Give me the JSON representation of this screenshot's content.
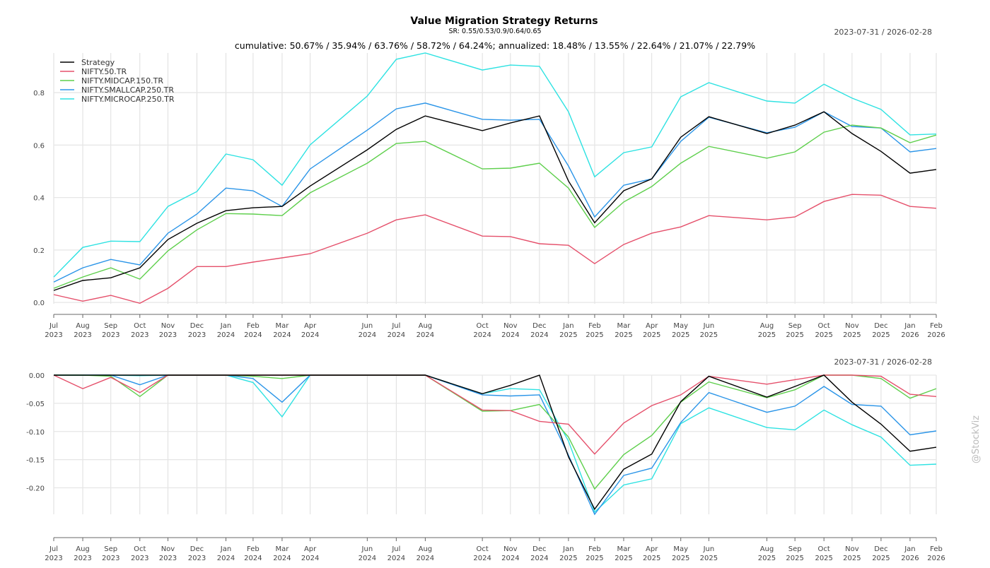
{
  "title": "Value Migration Strategy Returns",
  "subtitle": "SR: 0.55/0.53/0.9/0.64/0.65",
  "summary": "cumulative: 50.67% / 35.94% / 63.76% / 58.72% / 64.24%; annualized: 18.48% / 13.55% / 22.64% / 21.07% / 22.79%",
  "date_range": "2023-07-31 / 2026-02-28",
  "watermark": "@StockViz",
  "chart_data": [
    {
      "type": "line",
      "panel": "cumulative returns",
      "x": [
        "2023-07-31",
        "2023-08-31",
        "2023-09-30",
        "2023-10-31",
        "2023-11-30",
        "2023-12-31",
        "2024-01-31",
        "2024-02-29",
        "2024-03-31",
        "2024-04-30",
        "2024-06-30",
        "2024-07-31",
        "2024-08-31",
        "2024-10-31",
        "2024-11-30",
        "2024-12-31",
        "2025-01-31",
        "2025-02-28",
        "2025-03-31",
        "2025-04-30",
        "2025-05-31",
        "2025-06-30",
        "2025-08-31",
        "2025-09-30",
        "2025-10-31",
        "2025-11-30",
        "2025-12-31",
        "2026-01-31",
        "2026-02-28"
      ],
      "tick_labels": [
        "Jul 2023",
        "Aug 2023",
        "Sep 2023",
        "Oct 2023",
        "Nov 2023",
        "Dec 2023",
        "Jan 2024",
        "Feb 2024",
        "Mar 2024",
        "Apr 2024",
        "Jun 2024",
        "Jul 2024",
        "Aug 2024",
        "Oct 2024",
        "Nov 2024",
        "Dec 2024",
        "Jan 2025",
        "Feb 2025",
        "Mar 2025",
        "Apr 2025",
        "May 2025",
        "Jun 2025",
        "Aug 2025",
        "Sep 2025",
        "Oct 2025",
        "Nov 2025",
        "Dec 2025",
        "Jan 2026",
        "Feb 2026"
      ],
      "ylim": [
        -0.005,
        0.951
      ],
      "yticks": [
        0.0,
        0.2,
        0.4,
        0.6,
        0.8
      ],
      "ytick_labels": [
        "0.0",
        "0.2",
        "0.4",
        "0.6",
        "0.8"
      ],
      "grid": true,
      "legend": "top-left",
      "series": [
        {
          "name": "Strategy",
          "color": "#000000",
          "values": [
            0.046,
            0.084,
            0.094,
            0.132,
            0.24,
            0.302,
            0.35,
            0.361,
            0.366,
            0.444,
            0.582,
            0.66,
            0.711,
            0.655,
            0.684,
            0.711,
            0.463,
            0.304,
            0.426,
            0.471,
            0.63,
            0.708,
            0.644,
            0.676,
            0.727,
            0.644,
            0.576,
            0.493,
            0.507
          ]
        },
        {
          "name": "NIFTY.50.TR",
          "color": "#e5506b",
          "values": [
            0.03,
            0.005,
            0.027,
            -0.003,
            0.054,
            0.137,
            0.137,
            0.154,
            0.17,
            0.186,
            0.264,
            0.315,
            0.334,
            0.253,
            0.251,
            0.224,
            0.218,
            0.148,
            0.221,
            0.264,
            0.288,
            0.331,
            0.315,
            0.326,
            0.385,
            0.412,
            0.409,
            0.366,
            0.359
          ]
        },
        {
          "name": "NIFTY.MIDCAP.150.TR",
          "color": "#5ecf4c",
          "values": [
            0.054,
            0.097,
            0.132,
            0.089,
            0.197,
            0.277,
            0.339,
            0.337,
            0.331,
            0.418,
            0.531,
            0.606,
            0.614,
            0.509,
            0.512,
            0.531,
            0.436,
            0.286,
            0.383,
            0.442,
            0.531,
            0.595,
            0.55,
            0.574,
            0.649,
            0.676,
            0.665,
            0.609,
            0.638
          ]
        },
        {
          "name": "NIFTY.SMALLCAP.250.TR",
          "color": "#2b95e8",
          "values": [
            0.078,
            0.132,
            0.164,
            0.143,
            0.264,
            0.337,
            0.436,
            0.426,
            0.366,
            0.509,
            0.657,
            0.738,
            0.76,
            0.698,
            0.695,
            0.698,
            0.52,
            0.326,
            0.447,
            0.471,
            0.614,
            0.706,
            0.647,
            0.668,
            0.727,
            0.671,
            0.665,
            0.574,
            0.587
          ]
        },
        {
          "name": "NIFTY.MICROCAP.250.TR",
          "color": "#2ee2e2",
          "values": [
            0.097,
            0.21,
            0.234,
            0.232,
            0.366,
            0.423,
            0.566,
            0.544,
            0.447,
            0.601,
            0.787,
            0.927,
            0.951,
            0.886,
            0.905,
            0.9,
            0.727,
            0.479,
            0.571,
            0.593,
            0.784,
            0.838,
            0.768,
            0.76,
            0.832,
            0.779,
            0.736,
            0.639,
            0.642
          ]
        }
      ]
    },
    {
      "type": "line",
      "panel": "drawdown",
      "ylim": [
        -0.247,
        0.0
      ],
      "yticks": [
        0.0,
        -0.05,
        -0.1,
        -0.15,
        -0.2
      ],
      "ytick_labels": [
        "0.00",
        "-0.05",
        "-0.10",
        "-0.15",
        "-0.20"
      ],
      "grid": true,
      "series": [
        {
          "name": "Strategy",
          "color": "#000000",
          "values": [
            0,
            0,
            0,
            0,
            0,
            0,
            0,
            0,
            0,
            0,
            0,
            0,
            0,
            -0.033,
            -0.018,
            0,
            -0.145,
            -0.238,
            -0.167,
            -0.14,
            -0.047,
            -0.002,
            -0.039,
            -0.02,
            0,
            -0.048,
            -0.087,
            -0.135,
            -0.128
          ]
        },
        {
          "name": "NIFTY.50.TR",
          "color": "#e5506b",
          "values": [
            0,
            -0.024,
            -0.004,
            -0.031,
            0,
            0,
            0,
            0,
            0,
            0,
            0,
            0,
            0,
            -0.062,
            -0.063,
            -0.082,
            -0.087,
            -0.14,
            -0.085,
            -0.054,
            -0.035,
            -0.002,
            -0.016,
            -0.008,
            0,
            0,
            -0.002,
            -0.034,
            -0.038
          ]
        },
        {
          "name": "NIFTY.MIDCAP.150.TR",
          "color": "#5ecf4c",
          "values": [
            0,
            0,
            -0.002,
            -0.038,
            0,
            0,
            0,
            -0.002,
            -0.006,
            0,
            0,
            0,
            0,
            -0.064,
            -0.063,
            -0.052,
            -0.11,
            -0.202,
            -0.141,
            -0.107,
            -0.048,
            -0.012,
            -0.04,
            -0.026,
            0,
            0,
            -0.006,
            -0.041,
            -0.024
          ]
        },
        {
          "name": "NIFTY.SMALLCAP.250.TR",
          "color": "#2b95e8",
          "values": [
            0,
            0,
            0,
            -0.017,
            0,
            0,
            0,
            -0.006,
            -0.048,
            0,
            0,
            0,
            0,
            -0.035,
            -0.037,
            -0.035,
            -0.142,
            -0.247,
            -0.178,
            -0.165,
            -0.084,
            -0.031,
            -0.066,
            -0.055,
            -0.02,
            -0.052,
            -0.055,
            -0.106,
            -0.099
          ]
        },
        {
          "name": "NIFTY.MICROCAP.250.TR",
          "color": "#2ee2e2",
          "values": [
            0,
            0,
            0,
            -0.001,
            0,
            0,
            0,
            -0.013,
            -0.074,
            0,
            0,
            0,
            0,
            -0.033,
            -0.024,
            -0.026,
            -0.117,
            -0.243,
            -0.195,
            -0.184,
            -0.086,
            -0.058,
            -0.093,
            -0.097,
            -0.062,
            -0.088,
            -0.11,
            -0.16,
            -0.158
          ]
        }
      ]
    }
  ]
}
